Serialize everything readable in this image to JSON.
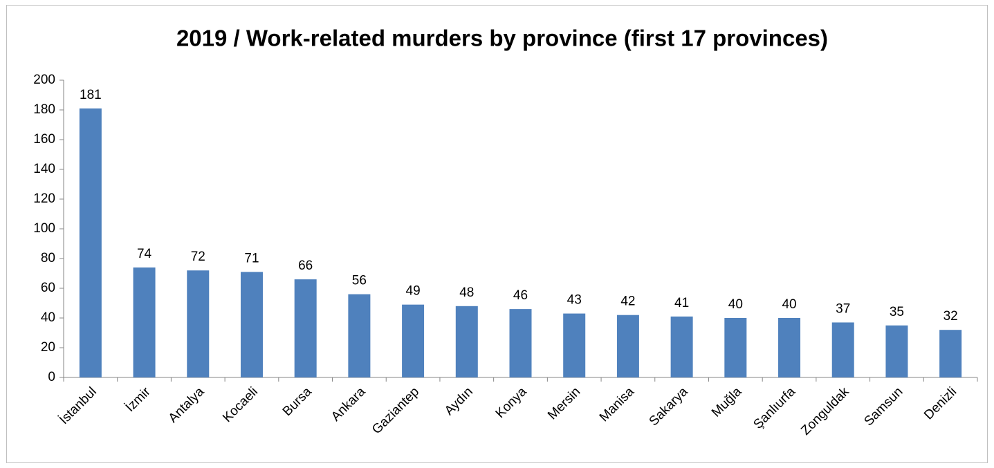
{
  "chart_data": {
    "type": "bar",
    "title": "2019 / Work-related murders by province (first 17 provinces)",
    "categories": [
      "İstanbul",
      "İzmir",
      "Antalya",
      "Kocaeli",
      "Bursa",
      "Ankara",
      "Gaziantep",
      "Aydın",
      "Konya",
      "Mersin",
      "Manisa",
      "Sakarya",
      "Muğla",
      "Şanlıurfa",
      "Zonguldak",
      "Samsun",
      "Denizli"
    ],
    "values": [
      181,
      74,
      72,
      71,
      66,
      56,
      49,
      48,
      46,
      43,
      42,
      41,
      40,
      40,
      37,
      35,
      32
    ],
    "color": "#4f81bd",
    "ylim": [
      0,
      200
    ],
    "yticks": [
      0,
      20,
      40,
      60,
      80,
      100,
      120,
      140,
      160,
      180,
      200
    ],
    "grid": false
  }
}
